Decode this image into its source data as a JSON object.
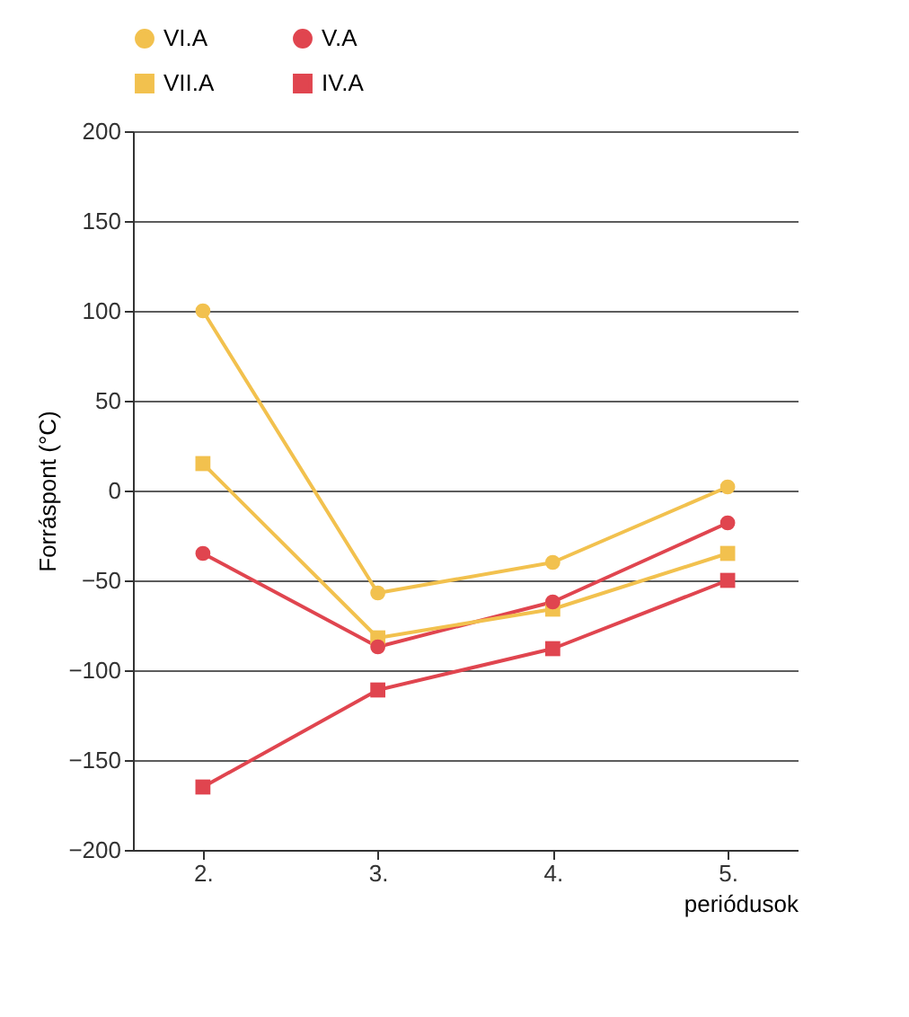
{
  "chart_data": {
    "type": "line",
    "ylabel": "Forráspont (°C)",
    "xlabel": "periódusok",
    "categories": [
      "2.",
      "3.",
      "4.",
      "5."
    ],
    "series": [
      {
        "name": "VI.A",
        "color": "#f2c14e",
        "marker": "circle",
        "values": [
          100,
          -57,
          -40,
          2
        ]
      },
      {
        "name": "V.A",
        "color": "#e0454f",
        "marker": "circle",
        "values": [
          -35,
          -87,
          -62,
          -18
        ]
      },
      {
        "name": "VII.A",
        "color": "#f2c14e",
        "marker": "square",
        "values": [
          15,
          -82,
          -66,
          -35
        ]
      },
      {
        "name": "IV.A",
        "color": "#e0454f",
        "marker": "square",
        "values": [
          -165,
          -111,
          -88,
          -50
        ]
      }
    ],
    "ylim": [
      -200,
      200
    ],
    "yticks": [
      -200,
      -150,
      -100,
      -50,
      0,
      50,
      100,
      150,
      200
    ],
    "grid": "y",
    "legend": "top"
  }
}
